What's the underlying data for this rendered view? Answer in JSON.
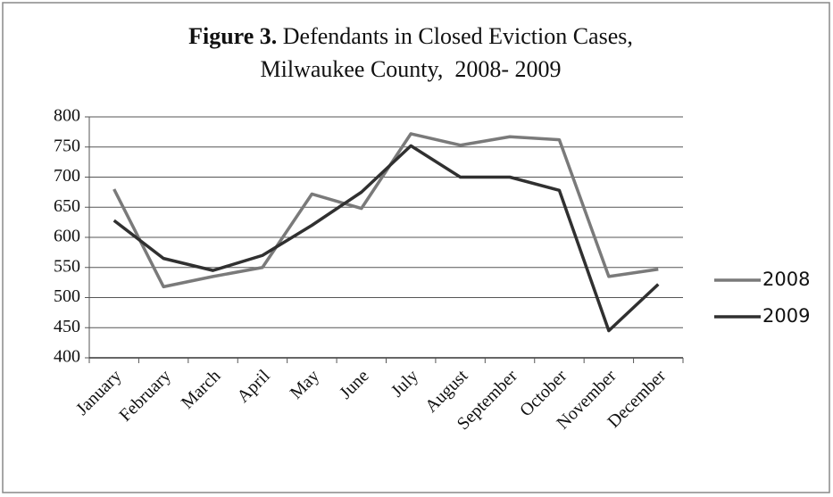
{
  "chart_data": {
    "type": "line",
    "title_label": "Figure 3.",
    "title": "Defendants in Closed Eviction Cases, Milwaukee County,  2008- 2009",
    "categories": [
      "January",
      "February",
      "March",
      "April",
      "May",
      "June",
      "July",
      "August",
      "September",
      "October",
      "November",
      "December"
    ],
    "series": [
      {
        "name": "2008",
        "color": "#7a7a7a",
        "values": [
          680,
          518,
          535,
          550,
          672,
          648,
          772,
          753,
          767,
          762,
          535,
          547
        ]
      },
      {
        "name": "2009",
        "color": "#303030",
        "values": [
          628,
          565,
          545,
          570,
          620,
          675,
          752,
          700,
          700,
          678,
          445,
          522
        ]
      }
    ],
    "ylim": [
      400,
      800
    ],
    "yticks": [
      400,
      450,
      500,
      550,
      600,
      650,
      700,
      750,
      800
    ],
    "grid": true,
    "legend": "right"
  }
}
